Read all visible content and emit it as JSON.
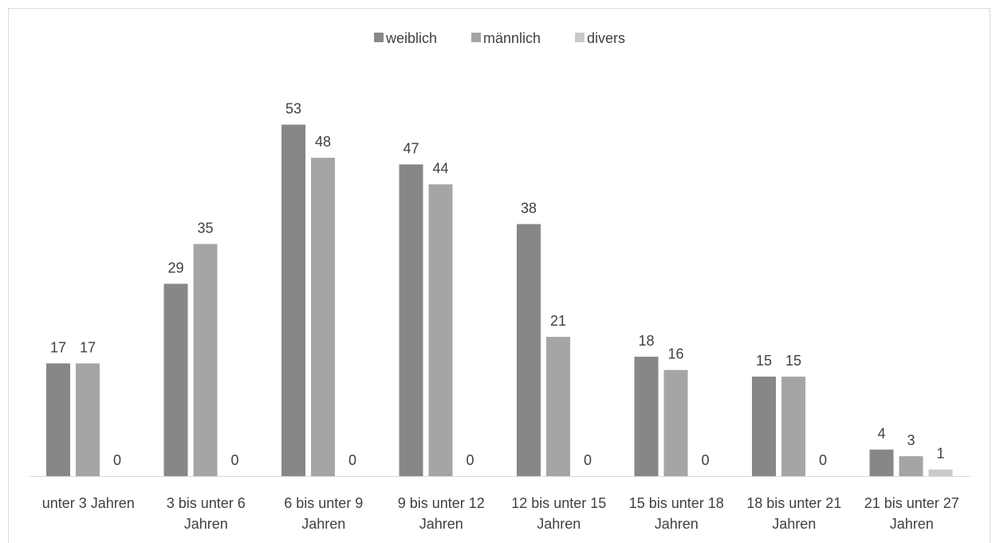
{
  "chart_data": {
    "type": "bar",
    "title": "",
    "xlabel": "",
    "ylabel": "",
    "ylim": [
      0,
      60
    ],
    "grid": false,
    "legend_position": "top",
    "categories": [
      [
        "unter 3 Jahren"
      ],
      [
        "3 bis unter 6",
        "Jahren"
      ],
      [
        "6 bis unter 9",
        "Jahren"
      ],
      [
        "9 bis unter 12",
        "Jahren"
      ],
      [
        "12 bis unter 15",
        "Jahren"
      ],
      [
        "15 bis unter 18",
        "Jahren"
      ],
      [
        "18 bis unter 21",
        "Jahren"
      ],
      [
        "21 bis unter 27",
        "Jahren"
      ]
    ],
    "series": [
      {
        "name": "weiblich",
        "color": "#878787",
        "values": [
          17,
          29,
          53,
          47,
          38,
          18,
          15,
          4
        ]
      },
      {
        "name": "männlich",
        "color": "#a5a5a5",
        "values": [
          17,
          35,
          48,
          44,
          21,
          16,
          15,
          3
        ]
      },
      {
        "name": "divers",
        "color": "#c9c9c9",
        "values": [
          0,
          0,
          0,
          0,
          0,
          0,
          0,
          1
        ]
      }
    ]
  }
}
